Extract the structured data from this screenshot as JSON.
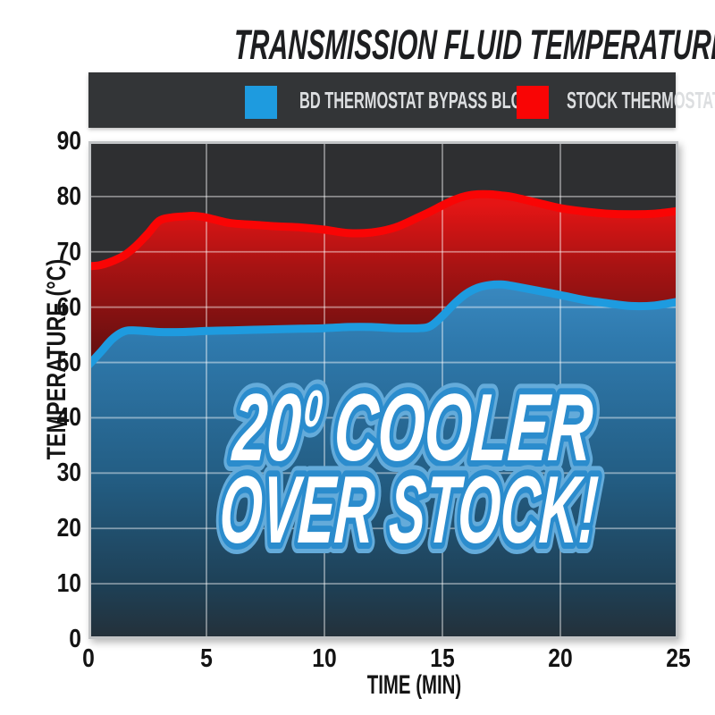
{
  "title": "TRANSMISSION FLUID TEMPERATURE",
  "overlay": {
    "num": "20",
    "sup": "0",
    "word": "COOLER",
    "line2": "OVER STOCK!"
  },
  "colors": {
    "page_background": "#ffffff",
    "plot_background": "#2e2f31",
    "legend_background": "#333537",
    "grid_line": "#ffffff",
    "frame": "#c2c4c6",
    "overlay_fill": "#ffffff",
    "overlay_outline": "#2b8ccd",
    "overlay_halo": "#64abda"
  },
  "chart_data": {
    "type": "area",
    "title": "TRANSMISSION FLUID TEMPERATURE",
    "xlabel": "TIME (MIN)",
    "ylabel": "TEMPERATURE (°C)",
    "xlim": [
      0,
      25
    ],
    "ylim": [
      0,
      90
    ],
    "x_ticks": [
      0,
      5,
      10,
      15,
      20,
      25
    ],
    "y_ticks": [
      0,
      10,
      20,
      30,
      40,
      50,
      60,
      70,
      80,
      90
    ],
    "grid": true,
    "legend_position": "top",
    "annotation": "20° COOLER OVER STOCK!",
    "series": [
      {
        "name": "BD THERMOSTAT BYPASS BLOCK",
        "color": "#1e9bdf",
        "fill_gradient": [
          "#3a89c0",
          "#2f7aae",
          "#235d83",
          "#1e4056",
          "#243039"
        ],
        "points": [
          [
            0,
            49.5
          ],
          [
            0.5,
            51.8
          ],
          [
            1,
            54.2
          ],
          [
            1.5,
            55.6
          ],
          [
            2,
            55.8
          ],
          [
            3,
            55.5
          ],
          [
            4,
            55.5
          ],
          [
            5,
            55.7
          ],
          [
            6,
            55.8
          ],
          [
            7,
            55.9
          ],
          [
            8,
            56.0
          ],
          [
            9,
            56.1
          ],
          [
            10,
            56.2
          ],
          [
            11,
            56.4
          ],
          [
            12,
            56.4
          ],
          [
            13,
            56.2
          ],
          [
            14,
            56.2
          ],
          [
            14.5,
            56.6
          ],
          [
            15,
            58.4
          ],
          [
            15.5,
            60.6
          ],
          [
            16,
            62.4
          ],
          [
            16.5,
            63.5
          ],
          [
            17,
            64.0
          ],
          [
            17.5,
            64.1
          ],
          [
            18,
            63.8
          ],
          [
            19,
            63.0
          ],
          [
            20,
            62.2
          ],
          [
            21,
            61.3
          ],
          [
            22,
            60.7
          ],
          [
            23,
            60.2
          ],
          [
            24,
            60.3
          ],
          [
            25,
            61.0
          ]
        ]
      },
      {
        "name": "STOCK THERMOSTAT",
        "color": "#f90505",
        "fill_gradient": [
          "#e51515",
          "#a81313",
          "#6b1010",
          "#4b0d0d"
        ],
        "points": [
          [
            0,
            67.4
          ],
          [
            0.5,
            67.6
          ],
          [
            1,
            68.3
          ],
          [
            1.5,
            69.3
          ],
          [
            2,
            71.0
          ],
          [
            2.5,
            73.2
          ],
          [
            3,
            75.6
          ],
          [
            3.5,
            76.2
          ],
          [
            4,
            76.4
          ],
          [
            4.5,
            76.5
          ],
          [
            5,
            76.2
          ],
          [
            6,
            75.2
          ],
          [
            7,
            74.9
          ],
          [
            8,
            74.6
          ],
          [
            9,
            74.4
          ],
          [
            10,
            74.0
          ],
          [
            11,
            73.4
          ],
          [
            12,
            73.5
          ],
          [
            13,
            74.4
          ],
          [
            14,
            76.3
          ],
          [
            14.5,
            77.3
          ],
          [
            15,
            78.4
          ],
          [
            15.5,
            79.4
          ],
          [
            16,
            80.1
          ],
          [
            16.5,
            80.4
          ],
          [
            17,
            80.4
          ],
          [
            17.5,
            80.2
          ],
          [
            18,
            79.9
          ],
          [
            19,
            78.9
          ],
          [
            20,
            77.9
          ],
          [
            21,
            77.3
          ],
          [
            22,
            76.9
          ],
          [
            23,
            76.8
          ],
          [
            24,
            76.9
          ],
          [
            25,
            77.4
          ]
        ]
      }
    ]
  }
}
